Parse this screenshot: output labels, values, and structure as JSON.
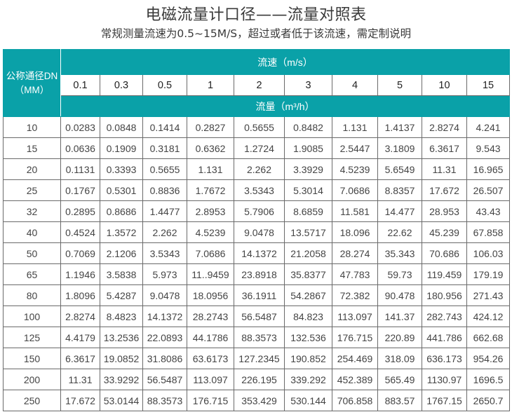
{
  "header": {
    "title": "电磁流量计口径——流量对照表",
    "subtitle": "常规测量流速为0.5~15M/S，超过或者低于该流速，需定制说明"
  },
  "colors": {
    "accent": "#0aa1a8",
    "border": "#6a6a6a"
  },
  "table": {
    "dn_header_line1": "公称通径DN",
    "dn_header_line2": "（MM）",
    "speed_header": "流速（m/s）",
    "flow_header": "流量（m³/h）",
    "speeds": [
      "0.1",
      "0.3",
      "0.5",
      "1",
      "2",
      "3",
      "4",
      "5",
      "10",
      "15"
    ],
    "rows": [
      {
        "dn": "10",
        "values": [
          "0.0283",
          "0.0848",
          "0.1414",
          "0.2827",
          "0.5655",
          "0.8482",
          "1.131",
          "1.4137",
          "2.8274",
          "4.241"
        ]
      },
      {
        "dn": "15",
        "values": [
          "0.0636",
          "0.1909",
          "0.3181",
          "0.6362",
          "1.2724",
          "1.9085",
          "2.5447",
          "3.1809",
          "6.3617",
          "9.543"
        ]
      },
      {
        "dn": "20",
        "values": [
          "0.1131",
          "0.3393",
          "0.5655",
          "1.131",
          "2.262",
          "3.3929",
          "4.5239",
          "5.6549",
          "11.31",
          "16.965"
        ]
      },
      {
        "dn": "25",
        "values": [
          "0.1767",
          "0.5301",
          "0.8836",
          "1.7672",
          "3.5343",
          "5.3014",
          "7.0686",
          "8.8357",
          "17.672",
          "26.507"
        ]
      },
      {
        "dn": "32",
        "values": [
          "0.2895",
          "0.8686",
          "1.4477",
          "2.8953",
          "5.7906",
          "8.6859",
          "11.581",
          "14.477",
          "28.953",
          "43.43"
        ]
      },
      {
        "dn": "40",
        "values": [
          "0.4524",
          "1.3572",
          "2.262",
          "4.5239",
          "9.0478",
          "13.5717",
          "18.096",
          "22.62",
          "45.239",
          "67.858"
        ]
      },
      {
        "dn": "50",
        "values": [
          "0.7069",
          "2.1206",
          "3.5343",
          "7.0686",
          "14.1372",
          "21.2058",
          "28.274",
          "35.343",
          "70.686",
          "106.03"
        ]
      },
      {
        "dn": "65",
        "values": [
          "1.1946",
          "3.5838",
          "5.973",
          "11..9459",
          "23.8918",
          "35.8377",
          "47.783",
          "59.73",
          "119.459",
          "179.19"
        ]
      },
      {
        "dn": "80",
        "values": [
          "1.8096",
          "5.4287",
          "9.0478",
          "18.0956",
          "36.1911",
          "54.2867",
          "72.382",
          "90.478",
          "180.956",
          "271.43"
        ]
      },
      {
        "dn": "100",
        "values": [
          "2.8274",
          "8.4823",
          "14.1372",
          "28.2743",
          "56.5487",
          "84.823",
          "113.097",
          "141.37",
          "282.743",
          "424.12"
        ]
      },
      {
        "dn": "125",
        "values": [
          "4.4179",
          "13.2536",
          "22.0893",
          "44.1786",
          "88.3573",
          "132.536",
          "176.715",
          "220.89",
          "441.786",
          "662.68"
        ]
      },
      {
        "dn": "150",
        "values": [
          "6.3617",
          "19.0852",
          "31.8086",
          "63.6173",
          "127.2345",
          "190.852",
          "254.469",
          "318.09",
          "636.173",
          "954.26"
        ]
      },
      {
        "dn": "200",
        "values": [
          "11.31",
          "33.9292",
          "56.5487",
          "113.097",
          "226.195",
          "339.292",
          "452.389",
          "565.49",
          "1130.97",
          "1696.5"
        ]
      },
      {
        "dn": "250",
        "values": [
          "17.672",
          "53.0144",
          "88.3573",
          "176.715",
          "353.429",
          "530.144",
          "706.858",
          "883.57",
          "1767.15",
          "2650.7"
        ]
      }
    ]
  }
}
